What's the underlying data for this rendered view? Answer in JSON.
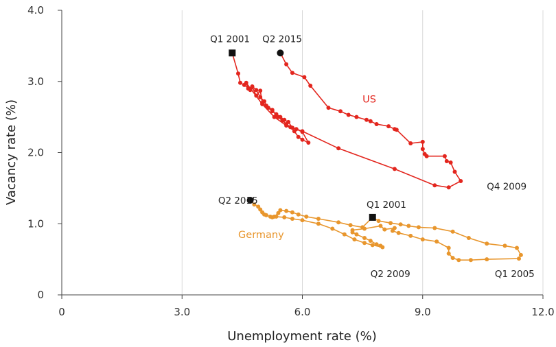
{
  "chart_data": {
    "type": "line",
    "xlabel": "Unemployment rate (%)",
    "ylabel": "Vacancy rate (%)",
    "xlim": [
      0,
      12
    ],
    "ylim": [
      0,
      4
    ],
    "x_ticks": [
      "0",
      "3.0",
      "6.0",
      "9.0",
      "12.0"
    ],
    "x_tick_values": [
      0,
      3,
      6,
      9,
      12
    ],
    "y_ticks": [
      "0",
      "1.0",
      "2.0",
      "3.0",
      "4.0"
    ],
    "y_tick_values": [
      0,
      1,
      2,
      3,
      4
    ],
    "grid": "vertical",
    "series": [
      {
        "name": "US",
        "color": "#e3261e",
        "points": [
          [
            4.25,
            3.4
          ],
          [
            4.4,
            3.11
          ],
          [
            4.45,
            2.98
          ],
          [
            4.55,
            2.95
          ],
          [
            4.7,
            2.88
          ],
          [
            4.75,
            2.92
          ],
          [
            4.85,
            2.8
          ],
          [
            4.95,
            2.87
          ],
          [
            5.0,
            2.7
          ],
          [
            5.15,
            2.63
          ],
          [
            5.25,
            2.58
          ],
          [
            5.35,
            2.54
          ],
          [
            5.4,
            2.5
          ],
          [
            5.5,
            2.45
          ],
          [
            5.6,
            2.4
          ],
          [
            5.7,
            2.36
          ],
          [
            5.8,
            2.3
          ],
          [
            5.9,
            2.22
          ],
          [
            6.0,
            2.18
          ],
          [
            6.15,
            2.14
          ],
          [
            6.0,
            2.29
          ],
          [
            5.85,
            2.33
          ],
          [
            5.75,
            2.35
          ],
          [
            5.65,
            2.43
          ],
          [
            5.55,
            2.46
          ],
          [
            5.45,
            2.5
          ],
          [
            5.35,
            2.52
          ],
          [
            5.25,
            2.6
          ],
          [
            5.1,
            2.66
          ],
          [
            5.05,
            2.72
          ],
          [
            4.95,
            2.78
          ],
          [
            4.85,
            2.88
          ],
          [
            4.75,
            2.93
          ],
          [
            4.65,
            2.9
          ],
          [
            4.6,
            2.98
          ],
          [
            5.0,
            2.68
          ],
          [
            5.3,
            2.5
          ],
          [
            5.6,
            2.38
          ],
          [
            6.0,
            2.3
          ],
          [
            6.9,
            2.06
          ],
          [
            8.3,
            1.77
          ],
          [
            9.3,
            1.54
          ],
          [
            9.65,
            1.51
          ],
          [
            9.95,
            1.6
          ],
          [
            9.8,
            1.73
          ],
          [
            9.7,
            1.86
          ],
          [
            9.6,
            1.88
          ],
          [
            9.55,
            1.95
          ],
          [
            9.1,
            1.95
          ],
          [
            9.05,
            1.98
          ],
          [
            9.0,
            2.05
          ],
          [
            9.0,
            2.15
          ],
          [
            8.7,
            2.13
          ],
          [
            8.35,
            2.32
          ],
          [
            8.3,
            2.33
          ],
          [
            8.15,
            2.37
          ],
          [
            7.85,
            2.4
          ],
          [
            7.7,
            2.44
          ],
          [
            7.6,
            2.46
          ],
          [
            7.35,
            2.5
          ],
          [
            7.15,
            2.53
          ],
          [
            6.95,
            2.58
          ],
          [
            6.65,
            2.63
          ],
          [
            6.2,
            2.94
          ],
          [
            6.05,
            3.06
          ],
          [
            5.75,
            3.12
          ],
          [
            5.6,
            3.24
          ],
          [
            5.45,
            3.4
          ]
        ]
      },
      {
        "name": "Germany",
        "color": "#e8962d",
        "points": [
          [
            4.7,
            1.33
          ],
          [
            4.8,
            1.27
          ],
          [
            4.9,
            1.24
          ],
          [
            4.95,
            1.2
          ],
          [
            5.0,
            1.16
          ],
          [
            5.05,
            1.13
          ],
          [
            5.1,
            1.12
          ],
          [
            5.2,
            1.1
          ],
          [
            5.3,
            1.1
          ],
          [
            5.4,
            1.15
          ],
          [
            5.45,
            1.19
          ],
          [
            5.6,
            1.18
          ],
          [
            5.75,
            1.16
          ],
          [
            5.9,
            1.13
          ],
          [
            6.1,
            1.1
          ],
          [
            6.4,
            1.07
          ],
          [
            6.9,
            1.02
          ],
          [
            7.2,
            0.98
          ],
          [
            7.5,
            0.95
          ],
          [
            7.75,
            1.09
          ],
          [
            7.9,
            1.04
          ],
          [
            8.2,
            1.01
          ],
          [
            8.45,
            0.99
          ],
          [
            8.65,
            0.97
          ],
          [
            8.9,
            0.95
          ],
          [
            9.3,
            0.94
          ],
          [
            9.75,
            0.89
          ],
          [
            10.15,
            0.8
          ],
          [
            10.6,
            0.72
          ],
          [
            11.05,
            0.69
          ],
          [
            11.35,
            0.66
          ],
          [
            11.45,
            0.56
          ],
          [
            11.4,
            0.51
          ],
          [
            10.6,
            0.5
          ],
          [
            10.2,
            0.49
          ],
          [
            9.9,
            0.49
          ],
          [
            9.75,
            0.52
          ],
          [
            9.65,
            0.58
          ],
          [
            9.65,
            0.66
          ],
          [
            9.35,
            0.75
          ],
          [
            9.0,
            0.78
          ],
          [
            8.7,
            0.83
          ],
          [
            8.4,
            0.87
          ],
          [
            8.25,
            0.9
          ],
          [
            8.3,
            0.94
          ],
          [
            8.05,
            0.92
          ],
          [
            7.95,
            0.97
          ],
          [
            7.55,
            0.93
          ],
          [
            7.25,
            0.91
          ],
          [
            7.25,
            0.88
          ],
          [
            7.35,
            0.85
          ],
          [
            7.55,
            0.8
          ],
          [
            7.7,
            0.76
          ],
          [
            7.85,
            0.71
          ],
          [
            7.95,
            0.69
          ],
          [
            8.0,
            0.67
          ],
          [
            7.75,
            0.7
          ],
          [
            7.55,
            0.73
          ],
          [
            7.3,
            0.78
          ],
          [
            7.05,
            0.85
          ],
          [
            6.75,
            0.93
          ],
          [
            6.4,
            1.0
          ],
          [
            6.0,
            1.05
          ],
          [
            5.75,
            1.07
          ],
          [
            5.55,
            1.09
          ],
          [
            5.35,
            1.1
          ],
          [
            5.25,
            1.09
          ]
        ]
      }
    ],
    "series_labels": [
      {
        "text": "US",
        "x": 7.5,
        "y": 2.75,
        "series": 0
      },
      {
        "text": "Germany",
        "x": 4.4,
        "y": 0.85,
        "series": 1
      }
    ],
    "markers": [
      {
        "shape": "square",
        "x": 4.25,
        "y": 3.4
      },
      {
        "shape": "circle",
        "x": 5.45,
        "y": 3.4
      },
      {
        "shape": "circle",
        "x": 4.7,
        "y": 1.33
      },
      {
        "shape": "square",
        "x": 7.75,
        "y": 1.09
      }
    ],
    "annotations": [
      {
        "text": "Q1 2001",
        "x": 3.7,
        "y": 3.6
      },
      {
        "text": "Q2 2015",
        "x": 5.0,
        "y": 3.6
      },
      {
        "text": "Q4 2009",
        "x": 10.6,
        "y": 1.53
      },
      {
        "text": "Q2 2015",
        "x": 3.9,
        "y": 1.33
      },
      {
        "text": "Q1 2001",
        "x": 7.6,
        "y": 1.27
      },
      {
        "text": "Q2 2009",
        "x": 7.7,
        "y": 0.3
      },
      {
        "text": "Q1 2005",
        "x": 10.8,
        "y": 0.3
      }
    ]
  }
}
